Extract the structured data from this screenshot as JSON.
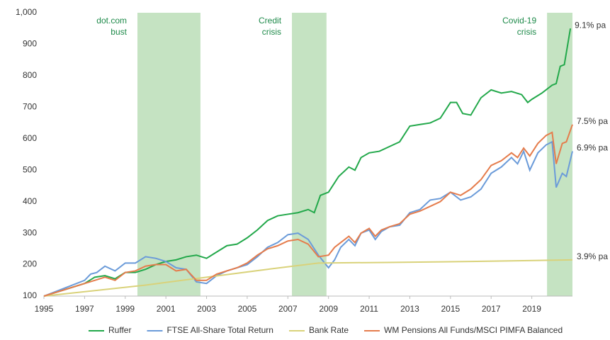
{
  "chart_data": {
    "type": "line",
    "xlim": [
      1995,
      2021
    ],
    "xticks": [
      1995,
      1997,
      1999,
      2001,
      2003,
      2005,
      2007,
      2009,
      2011,
      2013,
      2015,
      2017,
      2019
    ],
    "ylim": [
      100,
      1000
    ],
    "yticks": [
      100,
      200,
      300,
      400,
      500,
      600,
      700,
      800,
      900,
      {
        "value": 1000,
        "label": "1,000"
      }
    ],
    "grid": false,
    "legend": "bottom",
    "shaded_periods": [
      {
        "start": 1999.6,
        "end": 2002.7,
        "label": [
          "dot.com",
          "bust"
        ]
      },
      {
        "start": 2007.2,
        "end": 2008.9,
        "label": [
          "Credit",
          "crisis"
        ]
      },
      {
        "start": 2019.75,
        "end": 2021,
        "label": [
          "Covid-19",
          "crisis"
        ]
      }
    ],
    "shade_color": "#c5e3c2",
    "series": [
      {
        "name": "Ruffer",
        "color": "#22a84a",
        "end_label": "9.1% pa",
        "x": [
          1995,
          1996,
          1997,
          1997.5,
          1998,
          1998.5,
          1999,
          1999.5,
          2000,
          2000.5,
          2001,
          2001.5,
          2002,
          2002.5,
          2003,
          2003.5,
          2004,
          2004.5,
          2005,
          2005.5,
          2006,
          2006.5,
          2007,
          2007.5,
          2008,
          2008.3,
          2008.6,
          2009,
          2009.5,
          2010,
          2010.3,
          2010.6,
          2011,
          2011.5,
          2012,
          2012.5,
          2013,
          2013.5,
          2014,
          2014.5,
          2015,
          2015.3,
          2015.6,
          2016,
          2016.5,
          2017,
          2017.5,
          2018,
          2018.5,
          2018.8,
          2019,
          2019.5,
          2020,
          2020.2,
          2020.4,
          2020.6,
          2020.9
        ],
        "values": [
          100,
          120,
          140,
          160,
          165,
          155,
          175,
          175,
          185,
          200,
          210,
          215,
          225,
          230,
          220,
          240,
          260,
          265,
          285,
          310,
          340,
          355,
          360,
          365,
          375,
          365,
          420,
          430,
          480,
          510,
          500,
          540,
          555,
          560,
          575,
          590,
          640,
          645,
          650,
          665,
          715,
          715,
          680,
          675,
          730,
          755,
          745,
          750,
          740,
          715,
          725,
          745,
          770,
          775,
          830,
          835,
          950
        ]
      },
      {
        "name": "FTSE All-Share Total Return",
        "color": "#6b9bd9",
        "end_label": "6.9% pa",
        "x": [
          1995,
          1996,
          1997,
          1997.3,
          1997.6,
          1998,
          1998.5,
          1999,
          1999.5,
          2000,
          2000.5,
          2001,
          2001.5,
          2002,
          2002.5,
          2003,
          2003.5,
          2004,
          2004.5,
          2005,
          2005.5,
          2006,
          2006.5,
          2007,
          2007.5,
          2008,
          2008.5,
          2009,
          2009.3,
          2009.6,
          2010,
          2010.3,
          2010.6,
          2011,
          2011.3,
          2011.6,
          2012,
          2012.5,
          2013,
          2013.5,
          2014,
          2014.5,
          2015,
          2015.5,
          2016,
          2016.5,
          2017,
          2017.5,
          2018,
          2018.3,
          2018.6,
          2018.9,
          2019.3,
          2019.7,
          2020,
          2020.2,
          2020.5,
          2020.7,
          2021
        ],
        "values": [
          100,
          125,
          150,
          170,
          175,
          195,
          180,
          205,
          205,
          225,
          220,
          210,
          190,
          185,
          145,
          140,
          165,
          180,
          190,
          200,
          225,
          255,
          270,
          295,
          300,
          280,
          230,
          190,
          215,
          255,
          280,
          260,
          300,
          310,
          280,
          305,
          320,
          325,
          365,
          375,
          405,
          410,
          430,
          405,
          415,
          440,
          490,
          510,
          540,
          520,
          560,
          500,
          555,
          580,
          590,
          445,
          490,
          480,
          560
        ]
      },
      {
        "name": "Bank Rate",
        "color": "#d9d27a",
        "end_label": "3.9% pa",
        "x": [
          1995,
          2000,
          2003,
          2006,
          2008.5,
          2012,
          2016,
          2021
        ],
        "values": [
          100,
          135,
          160,
          185,
          205,
          207,
          210,
          215
        ]
      },
      {
        "name": "WM Pensions All Funds/MSCI PIMFA Balanced",
        "color": "#e57c4c",
        "end_label": "7.5% pa",
        "x": [
          1995,
          1996,
          1997,
          1997.5,
          1998,
          1998.5,
          1999,
          1999.5,
          2000,
          2000.5,
          2001,
          2001.5,
          2002,
          2002.5,
          2003,
          2003.5,
          2004,
          2004.5,
          2005,
          2005.5,
          2006,
          2006.5,
          2007,
          2007.5,
          2008,
          2008.5,
          2009,
          2009.3,
          2009.6,
          2010,
          2010.3,
          2010.6,
          2011,
          2011.3,
          2011.6,
          2012,
          2012.5,
          2013,
          2013.5,
          2014,
          2014.5,
          2015,
          2015.5,
          2016,
          2016.5,
          2017,
          2017.5,
          2018,
          2018.3,
          2018.6,
          2018.9,
          2019.3,
          2019.7,
          2020,
          2020.2,
          2020.5,
          2020.7,
          2021
        ],
        "values": [
          100,
          120,
          140,
          150,
          160,
          150,
          175,
          180,
          195,
          200,
          200,
          180,
          185,
          150,
          150,
          170,
          180,
          190,
          205,
          230,
          250,
          260,
          275,
          280,
          265,
          225,
          230,
          255,
          270,
          290,
          270,
          300,
          315,
          290,
          310,
          320,
          330,
          360,
          370,
          385,
          400,
          430,
          420,
          440,
          470,
          515,
          530,
          555,
          540,
          570,
          545,
          585,
          610,
          620,
          520,
          585,
          590,
          645
        ]
      }
    ]
  }
}
